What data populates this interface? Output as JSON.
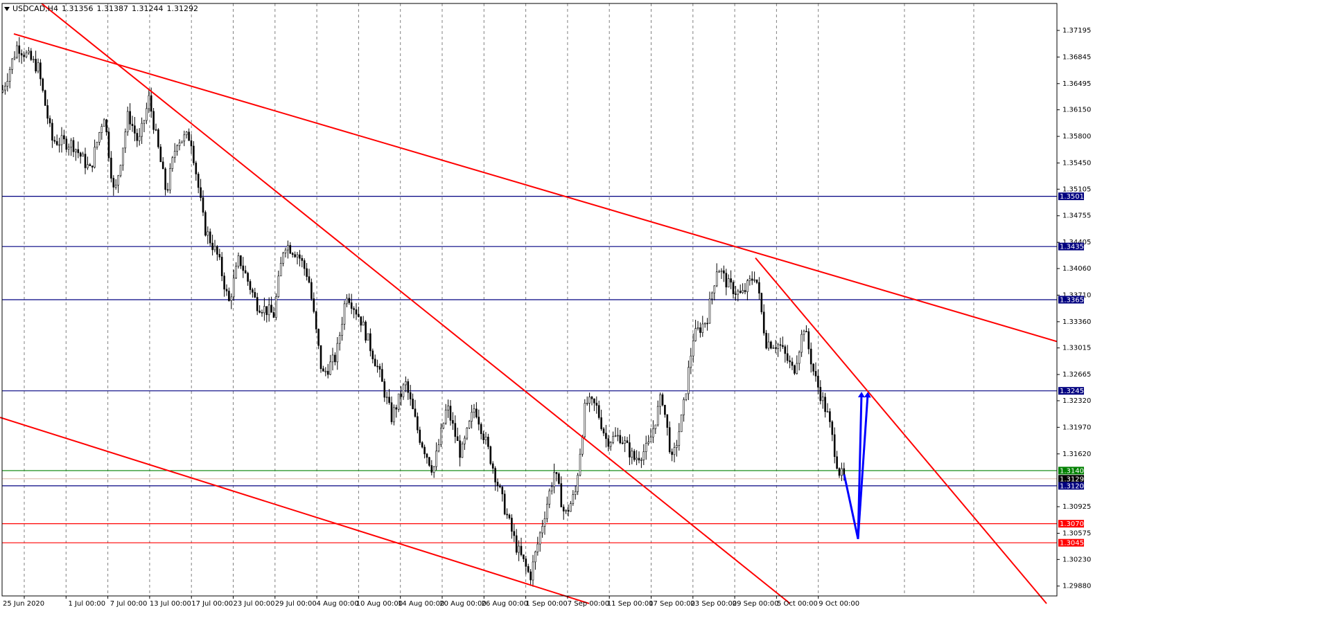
{
  "header": {
    "symbol": "USDCAD,H4",
    "open": "1.31356",
    "high": "1.31387",
    "low": "1.31244",
    "close": "1.31292"
  },
  "colors": {
    "background": "#ffffff",
    "grid": "#7f7f7f",
    "candle": "#000000",
    "trendline": "#ff0000",
    "blue_level": "#000080",
    "green_level": "#008000",
    "red_level": "#ff0000",
    "arrow": "#0000ff",
    "price_label": "#000000"
  },
  "chart_data": {
    "type": "candlestick",
    "symbol": "USDCAD",
    "timeframe": "H4",
    "ylim": [
      1.2975,
      1.3755
    ],
    "y_ticks": [
      "1.37195",
      "1.36845",
      "1.36495",
      "1.36150",
      "1.35800",
      "1.35450",
      "1.35105",
      "1.34755",
      "1.34405",
      "1.34060",
      "1.33710",
      "1.33360",
      "1.33015",
      "1.32665",
      "1.32320",
      "1.31970",
      "1.31620",
      "1.30925",
      "1.30575",
      "1.30230",
      "1.29880"
    ],
    "x_ticks": [
      "25 Jun 2020",
      "1 Jul 00:00",
      "7 Jul 00:00",
      "13 Jul 00:00",
      "17 Jul 00:00",
      "23 Jul 00:00",
      "29 Jul 00:00",
      "4 Aug 00:00",
      "10 Aug 00:00",
      "14 Aug 00:00",
      "20 Aug 00:00",
      "26 Aug 00:00",
      "1 Sep 00:00",
      "7 Sep 00:00",
      "11 Sep 00:00",
      "17 Sep 00:00",
      "23 Sep 00:00",
      "29 Sep 00:00",
      "5 Oct 00:00",
      "9 Oct 00:00"
    ],
    "price_path": [
      [
        0,
        1.363
      ],
      [
        25,
        1.37
      ],
      [
        55,
        1.367
      ],
      [
        75,
        1.3575
      ],
      [
        105,
        1.357
      ],
      [
        130,
        1.3535
      ],
      [
        150,
        1.361
      ],
      [
        165,
        1.35
      ],
      [
        185,
        1.361
      ],
      [
        200,
        1.357
      ],
      [
        215,
        1.363
      ],
      [
        240,
        1.3505
      ],
      [
        255,
        1.3575
      ],
      [
        275,
        1.358
      ],
      [
        295,
        1.346
      ],
      [
        315,
        1.342
      ],
      [
        330,
        1.336
      ],
      [
        345,
        1.342
      ],
      [
        370,
        1.336
      ],
      [
        395,
        1.3345
      ],
      [
        410,
        1.344
      ],
      [
        430,
        1.3425
      ],
      [
        445,
        1.3395
      ],
      [
        465,
        1.3265
      ],
      [
        485,
        1.329
      ],
      [
        500,
        1.3375
      ],
      [
        520,
        1.334
      ],
      [
        545,
        1.3275
      ],
      [
        565,
        1.321
      ],
      [
        585,
        1.3255
      ],
      [
        605,
        1.3185
      ],
      [
        625,
        1.314
      ],
      [
        645,
        1.3225
      ],
      [
        665,
        1.316
      ],
      [
        685,
        1.3225
      ],
      [
        705,
        1.3165
      ],
      [
        725,
        1.31
      ],
      [
        745,
        1.304
      ],
      [
        765,
        1.3
      ],
      [
        780,
        1.306
      ],
      [
        800,
        1.314
      ],
      [
        815,
        1.308
      ],
      [
        830,
        1.311
      ],
      [
        845,
        1.323
      ],
      [
        860,
        1.3225
      ],
      [
        875,
        1.318
      ],
      [
        895,
        1.3185
      ],
      [
        915,
        1.3155
      ],
      [
        935,
        1.317
      ],
      [
        955,
        1.324
      ],
      [
        970,
        1.315
      ],
      [
        985,
        1.3215
      ],
      [
        1000,
        1.3315
      ],
      [
        1020,
        1.334
      ],
      [
        1035,
        1.341
      ],
      [
        1050,
        1.3385
      ],
      [
        1070,
        1.337
      ],
      [
        1090,
        1.34
      ],
      [
        1105,
        1.331
      ],
      [
        1125,
        1.3305
      ],
      [
        1145,
        1.327
      ],
      [
        1160,
        1.333
      ],
      [
        1175,
        1.3265
      ],
      [
        1195,
        1.321
      ],
      [
        1210,
        1.314
      ],
      [
        1218,
        1.3129
      ]
    ],
    "horizontal_levels": [
      {
        "label": "1.35011",
        "value": 1.35011,
        "style": "blue"
      },
      {
        "label": "1.34350",
        "value": 1.3435,
        "style": "blue"
      },
      {
        "label": "1.33650",
        "value": 1.3365,
        "style": "blue"
      },
      {
        "label": "1.32450",
        "value": 1.3245,
        "style": "blue"
      },
      {
        "label": "1.31400",
        "value": 1.314,
        "style": "green"
      },
      {
        "label": "1.31292",
        "value": 1.31292,
        "style": "current"
      },
      {
        "label": "1.31200",
        "value": 1.312,
        "style": "blue"
      },
      {
        "label": "1.30701",
        "value": 1.30701,
        "style": "red"
      },
      {
        "label": "1.30450",
        "value": 1.3045,
        "style": "red"
      }
    ],
    "trendlines": [
      {
        "x1": 20,
        "y1": 1.3715,
        "x2": 1525,
        "y2": 1.331
      },
      {
        "x1": 60,
        "y1": 1.3755,
        "x2": 1140,
        "y2": 1.2965
      },
      {
        "x1": 0,
        "y1": 1.321,
        "x2": 850,
        "y2": 1.2965
      },
      {
        "x1": 1090,
        "y1": 1.342,
        "x2": 1510,
        "y2": 1.2965
      }
    ],
    "arrows": [
      {
        "points": [
          [
            1218,
            1.3135
          ],
          [
            1238,
            1.305
          ],
          [
            1243,
            1.324
          ]
        ]
      },
      {
        "points": [
          [
            1238,
            1.305
          ],
          [
            1252,
            1.324
          ]
        ]
      }
    ]
  }
}
